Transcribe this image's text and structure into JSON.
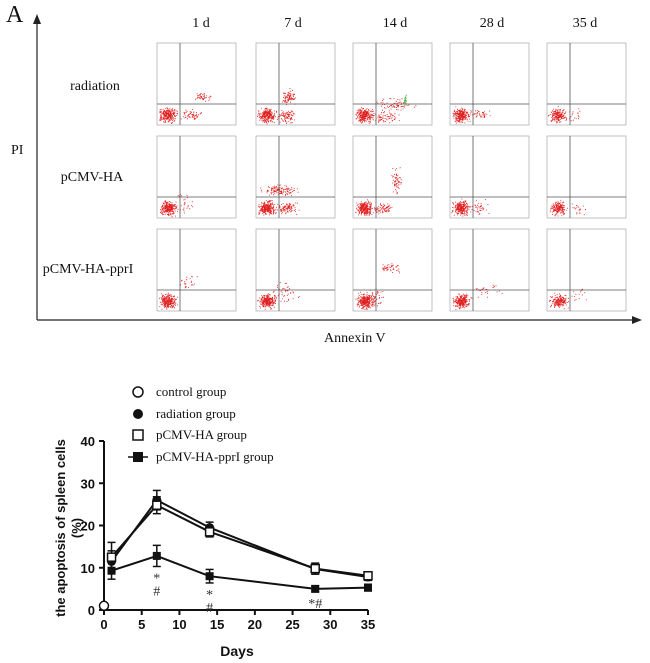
{
  "panel": {
    "letter": "A",
    "columns": [
      "1 d",
      "7 d",
      "14 d",
      "28 d",
      "35 d"
    ],
    "rows": [
      "radiation",
      "pCMV-HA",
      "pCMV-HA-pprI"
    ],
    "y_axis_label": "PI",
    "x_axis_label": "Annexin V"
  },
  "colors": {
    "dots": "#e02020",
    "green": "#3bbf3b",
    "axis": "#222222",
    "quad": "#555555"
  },
  "chart_data": {
    "type": "line",
    "ylabel": "the apoptosis of spleen cells (%)",
    "ylabel_lines": [
      "the apoptosis of spleen cells",
      "(%)"
    ],
    "xlabel": "Days",
    "xlim": [
      0,
      35
    ],
    "ylim": [
      0,
      40
    ],
    "xticks": [
      0,
      5,
      10,
      15,
      20,
      25,
      30,
      35
    ],
    "yticks": [
      0,
      10,
      20,
      30,
      40
    ],
    "series": [
      {
        "name": "control group",
        "marker": "open-circle",
        "x": [
          0
        ],
        "y": [
          1
        ],
        "err": [
          0
        ]
      },
      {
        "name": "radiation group",
        "marker": "filled-circle",
        "x": [
          1,
          7,
          14,
          28,
          35
        ],
        "y": [
          11.5,
          26,
          19.5,
          9.7,
          7.8
        ],
        "err": [
          2.5,
          2.3,
          1.3,
          1.2,
          0.8
        ]
      },
      {
        "name": "pCMV-HA group",
        "marker": "open-square",
        "x": [
          1,
          7,
          14,
          28,
          35
        ],
        "y": [
          12.5,
          24.8,
          18.5,
          9.8,
          8.1
        ],
        "err": [
          3.5,
          2.0,
          1.2,
          1.3,
          0.8
        ]
      },
      {
        "name": "pCMV-HA-pprI group",
        "marker": "filled-square",
        "x": [
          1,
          7,
          14,
          28,
          35
        ],
        "y": [
          9.3,
          12.8,
          8.0,
          5.0,
          5.3
        ],
        "err": [
          2.0,
          2.5,
          1.6,
          0.7,
          0.8
        ]
      }
    ],
    "annotations": [
      {
        "x": 7,
        "lines": [
          "*",
          "#"
        ]
      },
      {
        "x": 14,
        "lines": [
          "*",
          "#"
        ]
      },
      {
        "x": 28,
        "lines": [
          "*#"
        ]
      }
    ]
  }
}
